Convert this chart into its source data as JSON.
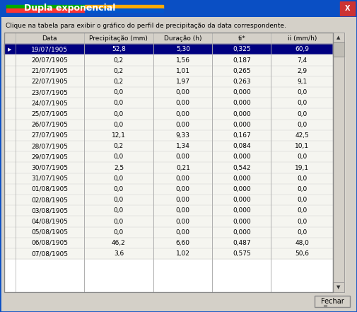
{
  "title": "Dupla exponencial",
  "subtitle": "Clique na tabela para exibir o gráfico do perfil de precipitação da data correspondente.",
  "columns": [
    "Data",
    "Precipitação (mm)",
    "Duração (h)",
    "ti*",
    "ii (mm/h)"
  ],
  "rows": [
    [
      "19/07/1905",
      "52,8",
      "5,30",
      "0,325",
      "60,9"
    ],
    [
      "20/07/1905",
      "0,2",
      "1,56",
      "0,187",
      "7,4"
    ],
    [
      "21/07/1905",
      "0,2",
      "1,01",
      "0,265",
      "2,9"
    ],
    [
      "22/07/1905",
      "0,2",
      "1,97",
      "0,263",
      "9,1"
    ],
    [
      "23/07/1905",
      "0,0",
      "0,00",
      "0,000",
      "0,0"
    ],
    [
      "24/07/1905",
      "0,0",
      "0,00",
      "0,000",
      "0,0"
    ],
    [
      "25/07/1905",
      "0,0",
      "0,00",
      "0,000",
      "0,0"
    ],
    [
      "26/07/1905",
      "0,0",
      "0,00",
      "0,000",
      "0,0"
    ],
    [
      "27/07/1905",
      "12,1",
      "9,33",
      "0,167",
      "42,5"
    ],
    [
      "28/07/1905",
      "0,2",
      "1,34",
      "0,084",
      "10,1"
    ],
    [
      "29/07/1905",
      "0,0",
      "0,00",
      "0,000",
      "0,0"
    ],
    [
      "30/07/1905",
      "2,5",
      "0,21",
      "0,542",
      "19,1"
    ],
    [
      "31/07/1905",
      "0,0",
      "0,00",
      "0,000",
      "0,0"
    ],
    [
      "01/08/1905",
      "0,0",
      "0,00",
      "0,000",
      "0,0"
    ],
    [
      "02/08/1905",
      "0,0",
      "0,00",
      "0,000",
      "0,0"
    ],
    [
      "03/08/1905",
      "0,0",
      "0,00",
      "0,000",
      "0,0"
    ],
    [
      "04/08/1905",
      "0,0",
      "0,00",
      "0,000",
      "0,0"
    ],
    [
      "05/08/1905",
      "0,0",
      "0,00",
      "0,000",
      "0,0"
    ],
    [
      "06/08/1905",
      "46,2",
      "6,60",
      "0,487",
      "48,0"
    ],
    [
      "07/08/1905",
      "3,6",
      "1,02",
      "0,575",
      "50,6"
    ]
  ],
  "selected_row": 0,
  "title_bar_color": "#0a4fc4",
  "title_text_color": "#ffffff",
  "header_bg": "#d4d0c8",
  "header_text": "#000000",
  "selected_bg": "#000080",
  "selected_text": "#ffffff",
  "row_bg": "#f5f5f0",
  "dialog_bg": "#d4d0c8",
  "table_bg": "#ffffff",
  "button_text": "Fechar"
}
